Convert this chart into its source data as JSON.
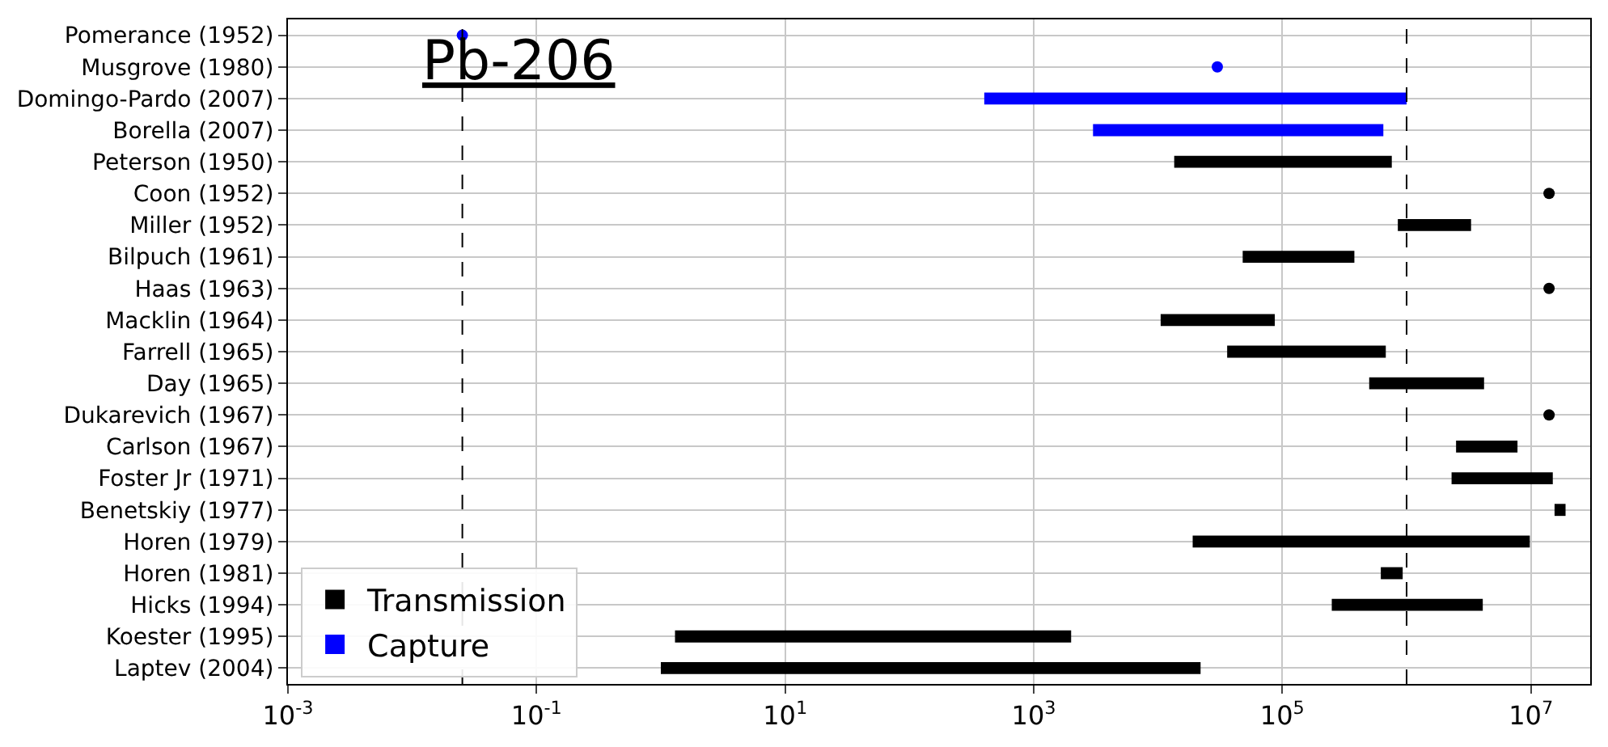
{
  "chart_data": {
    "type": "bar",
    "orientation": "horizontal",
    "title": "Pb-206",
    "categories": [
      "Pomerance (1952)",
      "Musgrove (1980)",
      "Domingo-Pardo (2007)",
      "Borella (2007)",
      "Peterson (1950)",
      "Coon (1952)",
      "Miller (1952)",
      "Bilpuch (1961)",
      "Haas (1963)",
      "Macklin (1964)",
      "Farrell (1965)",
      "Day (1965)",
      "Dukarevich (1967)",
      "Carlson (1967)",
      "Foster Jr (1971)",
      "Benetskiy (1977)",
      "Horen (1979)",
      "Horen (1981)",
      "Hicks (1994)",
      "Koester (1995)",
      "Laptev (2004)"
    ],
    "series": [
      {
        "name": "Transmission",
        "color": "#000000",
        "base": [
          null,
          null,
          null,
          null,
          13500,
          null,
          850000,
          48000,
          null,
          10500,
          36000,
          500000,
          null,
          2500000,
          2300000,
          15500000,
          19000,
          620000,
          250000,
          1.3,
          1.0
        ],
        "values": [
          null,
          null,
          null,
          null,
          746500,
          null,
          2450000,
          332000,
          null,
          76500,
          644000,
          3700000,
          null,
          5300000,
          12700000,
          3500000,
          9781000,
          310000,
          3850000,
          1998.7,
          21999
        ]
      },
      {
        "name": "Capture",
        "color": "#0000ff",
        "base": [
          null,
          null,
          400,
          3000,
          null,
          null,
          null,
          null,
          null,
          null,
          null,
          null,
          null,
          null,
          null,
          null,
          null,
          null,
          null,
          null,
          null
        ],
        "values": [
          null,
          null,
          999600,
          647000,
          null,
          null,
          null,
          null,
          null,
          null,
          null,
          null,
          null,
          null,
          null,
          null,
          null,
          null,
          null,
          null,
          null
        ]
      },
      {
        "color": "#000000",
        "type": "scatter",
        "values": [
          null,
          null,
          null,
          null,
          null,
          14000000,
          null,
          null,
          14000000,
          null,
          null,
          null,
          14000000,
          null,
          null,
          null,
          null,
          null,
          null,
          null,
          null
        ]
      },
      {
        "color": "#0000ff",
        "type": "scatter",
        "values": [
          0.0253,
          30000,
          null,
          null,
          null,
          null,
          null,
          null,
          null,
          null,
          null,
          null,
          null,
          null,
          null,
          null,
          null,
          null,
          null,
          null,
          null
        ]
      }
    ],
    "log": "x",
    "xlim": [
      0.001,
      30000000
    ],
    "xticks": [
      {
        "value": 0.001,
        "label": "10$^{-3}$"
      },
      {
        "value": 0.1,
        "label": "10$^{-1}$"
      },
      {
        "value": 10,
        "label": "10$^{1}$"
      },
      {
        "value": 1000,
        "label": "10$^{3}$"
      },
      {
        "value": 100000,
        "label": "10$^{5}$"
      },
      {
        "value": 10000000,
        "label": "10$^{7}$"
      }
    ],
    "grid": true,
    "legend": "bottom left",
    "marker": "circle",
    "ref_lines": [
      {
        "axis": "x",
        "value": 0.0253,
        "color": "#000000",
        "line_style": "dashed"
      },
      {
        "axis": "x",
        "value": 1000000,
        "color": "#000000",
        "line_style": "dashed"
      }
    ]
  }
}
